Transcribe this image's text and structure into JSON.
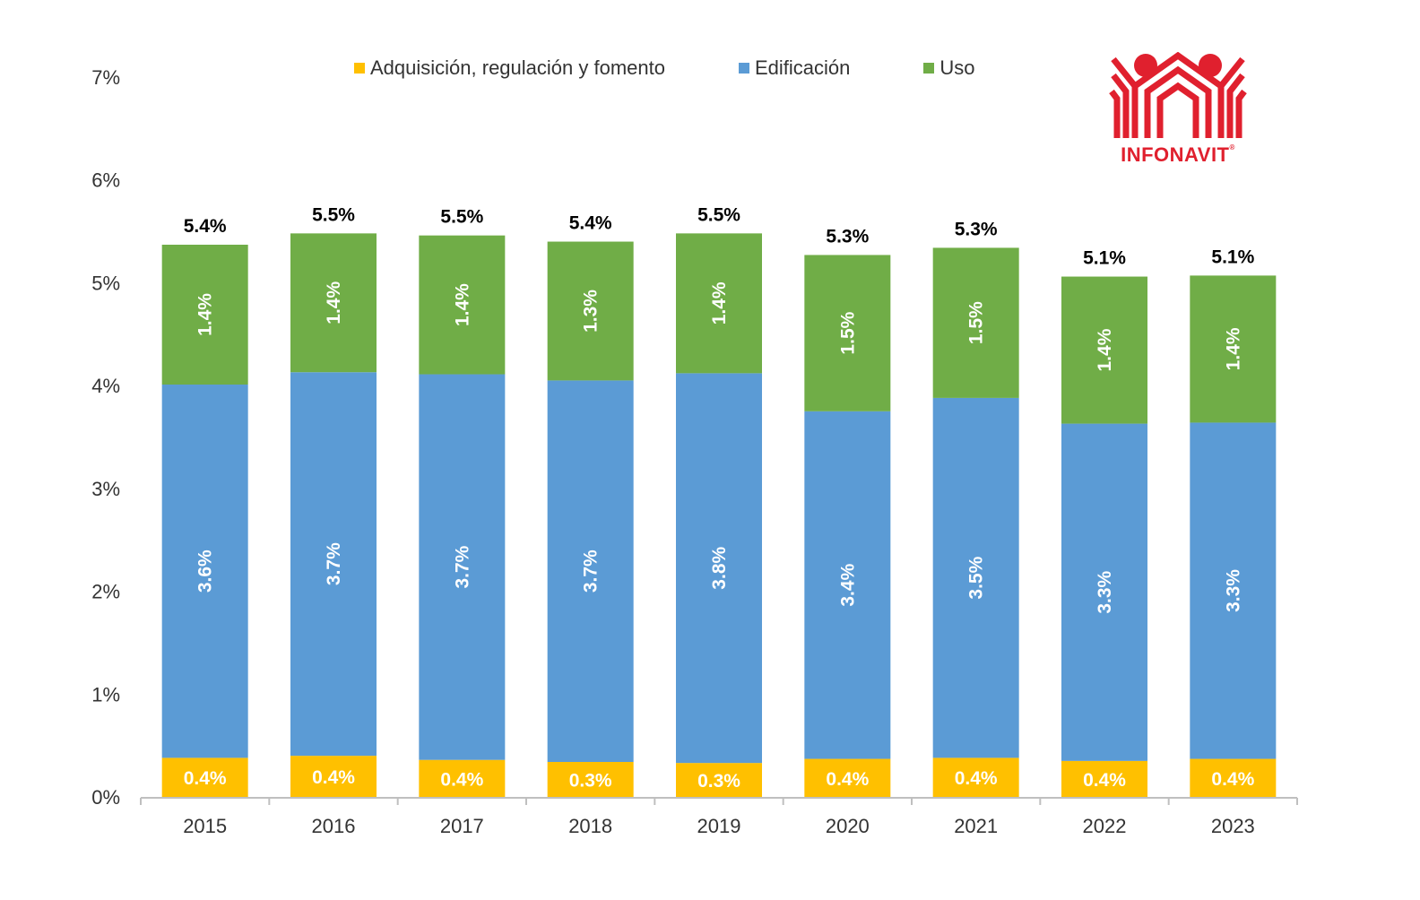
{
  "chart_data": {
    "type": "bar",
    "stacked": true,
    "title": "",
    "xlabel": "",
    "ylabel": "",
    "ylim": [
      0,
      7
    ],
    "y_ticks": [
      "0%",
      "1%",
      "2%",
      "3%",
      "4%",
      "5%",
      "6%",
      "7%"
    ],
    "y_tick_values": [
      0,
      1,
      2,
      3,
      4,
      5,
      6,
      7
    ],
    "grid": false,
    "legend_position": "top",
    "categories": [
      "2015",
      "2016",
      "2017",
      "2018",
      "2019",
      "2020",
      "2021",
      "2022",
      "2023"
    ],
    "series": [
      {
        "name": "Adquisición, regulación y fomento",
        "color": "#FFC000",
        "values": [
          0.38,
          0.4,
          0.36,
          0.34,
          0.33,
          0.37,
          0.38,
          0.35,
          0.37
        ],
        "labels": [
          "0.4%",
          "0.4%",
          "0.4%",
          "0.3%",
          "0.3%",
          "0.4%",
          "0.4%",
          "0.4%",
          "0.4%"
        ]
      },
      {
        "name": "Edificación",
        "color": "#5B9BD5",
        "values": [
          3.63,
          3.73,
          3.75,
          3.71,
          3.79,
          3.38,
          3.5,
          3.28,
          3.27
        ],
        "labels": [
          "3.6%",
          "3.7%",
          "3.7%",
          "3.7%",
          "3.8%",
          "3.4%",
          "3.5%",
          "3.3%",
          "3.3%"
        ]
      },
      {
        "name": "Uso",
        "color": "#70AD47",
        "values": [
          1.36,
          1.35,
          1.35,
          1.35,
          1.36,
          1.52,
          1.46,
          1.43,
          1.43
        ],
        "labels": [
          "1.4%",
          "1.4%",
          "1.4%",
          "1.3%",
          "1.4%",
          "1.5%",
          "1.5%",
          "1.4%",
          "1.4%"
        ]
      }
    ],
    "totals": [
      5.37,
      5.48,
      5.46,
      5.4,
      5.48,
      5.27,
      5.34,
      5.06,
      5.07
    ],
    "total_labels": [
      "5.4%",
      "5.5%",
      "5.5%",
      "5.4%",
      "5.5%",
      "5.3%",
      "5.3%",
      "5.1%",
      "5.1%"
    ]
  },
  "legend": {
    "items": [
      {
        "label": "Adquisición, regulación y fomento",
        "color": "#FFC000"
      },
      {
        "label": "Edificación",
        "color": "#5B9BD5"
      },
      {
        "label": "Uso",
        "color": "#70AD47"
      }
    ]
  },
  "logo": {
    "text": "INFONAVIT",
    "registered": "®",
    "color": "#E0202E"
  },
  "colors": {
    "axis": "#BFBFBF",
    "tick_text": "#333333",
    "total_text": "#000000",
    "segment_label": "#FFFFFF"
  }
}
